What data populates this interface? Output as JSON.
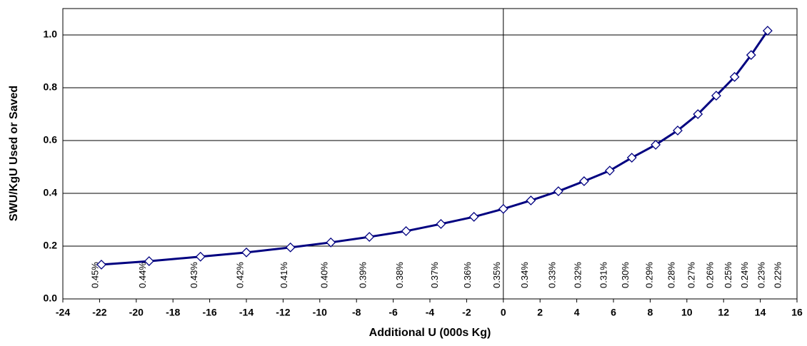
{
  "chart_data": {
    "type": "line",
    "x_label": "Additional U (000s Kg)",
    "y_label": "SWU/KgU Used or Saved",
    "xlim": [
      -24,
      16
    ],
    "xticks": [
      -24,
      -22,
      -20,
      -18,
      -16,
      -14,
      -12,
      -10,
      -8,
      -6,
      -4,
      -2,
      0,
      2,
      4,
      6,
      8,
      10,
      12,
      14,
      16
    ],
    "ylim": [
      0,
      1.1
    ],
    "yticks": [
      {
        "value": 0,
        "label": "0.0"
      },
      0.2,
      0.4,
      0.6,
      0.8,
      {
        "value": 1,
        "label": "1.0"
      }
    ],
    "grid": true,
    "series": [
      {
        "color": "#000080",
        "x": [
          -21.9,
          -19.3,
          -16.5,
          -14.0,
          -11.6,
          -9.4,
          -7.3,
          -5.3,
          -3.4,
          -1.6,
          0,
          1.5,
          3.0,
          4.4,
          5.8,
          7.0,
          8.3,
          9.5,
          10.6,
          11.6,
          12.6,
          13.5,
          14.4
        ],
        "values": [
          0.13,
          0.143,
          0.16,
          0.176,
          0.195,
          0.214,
          0.235,
          0.257,
          0.284,
          0.311,
          0.341,
          0.373,
          0.408,
          0.446,
          0.486,
          0.535,
          0.584,
          0.638,
          0.7,
          0.77,
          0.841,
          0.924,
          1.016
        ]
      }
    ],
    "annotations": [
      {
        "text": "0.45%",
        "x": -21.9
      },
      {
        "text": "0.44%",
        "x": -19.3
      },
      {
        "text": "0.43%",
        "x": -16.5
      },
      {
        "text": "0.42%",
        "x": -14.0
      },
      {
        "text": "0.41%",
        "x": -11.6
      },
      {
        "text": "0.40%",
        "x": -9.4
      },
      {
        "text": "0.39%",
        "x": -7.3
      },
      {
        "text": "0.38%",
        "x": -5.3
      },
      {
        "text": "0.37%",
        "x": -3.4
      },
      {
        "text": "0.36%",
        "x": -1.6
      },
      {
        "text": "0.35%",
        "x": 0
      },
      {
        "text": "0.34%",
        "x": 1.5
      },
      {
        "text": "0.33%",
        "x": 3.0
      },
      {
        "text": "0.32%",
        "x": 4.4
      },
      {
        "text": "0.31%",
        "x": 5.8
      },
      {
        "text": "0.30%",
        "x": 7.0
      },
      {
        "text": "0.29%",
        "x": 8.3
      },
      {
        "text": "0.28%",
        "x": 9.5
      },
      {
        "text": "0.27%",
        "x": 10.6
      },
      {
        "text": "0.26%",
        "x": 11.6
      },
      {
        "text": "0.25%",
        "x": 12.6
      },
      {
        "text": "0.24%",
        "x": 13.5
      },
      {
        "text": "0.23%",
        "x": 14.4
      },
      {
        "text": "0.22%",
        "x": 15.3
      }
    ]
  }
}
